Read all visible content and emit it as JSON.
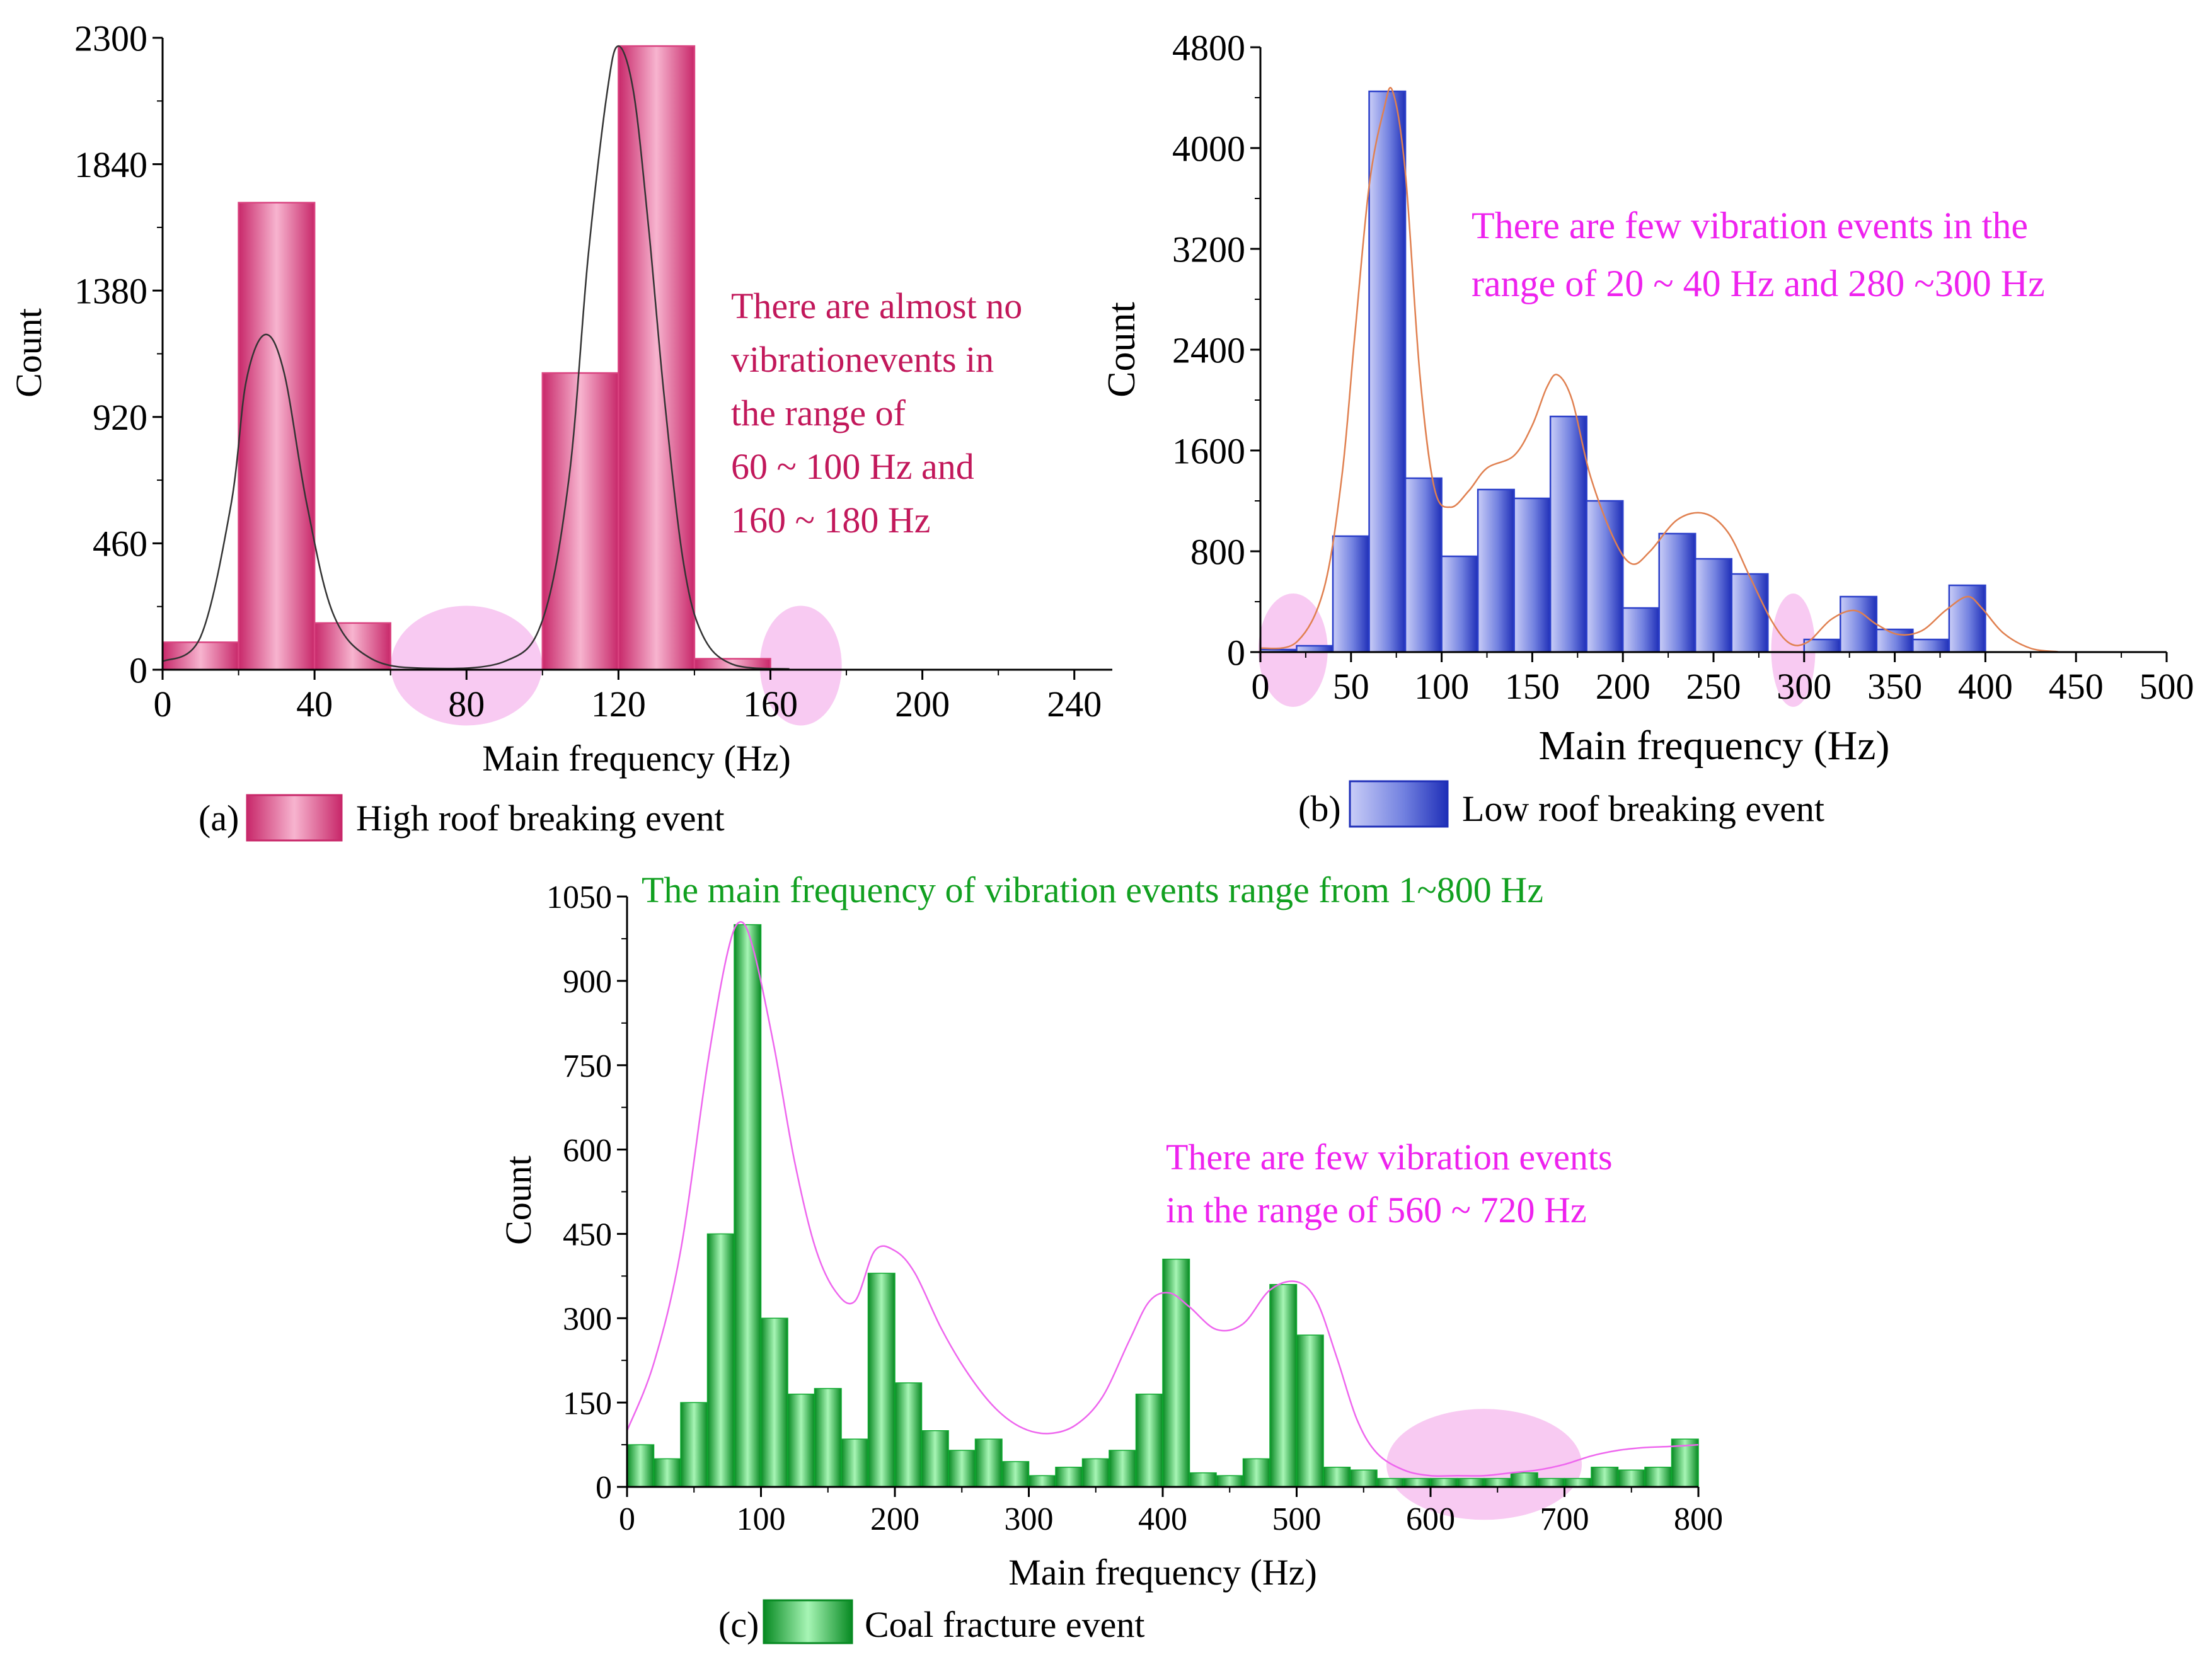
{
  "chart_data": [
    {
      "id": "a",
      "type": "bar",
      "panel_label": "(a)",
      "legend_label": "High roof breaking event",
      "xlabel": "Main frequency (Hz)",
      "ylabel": "Count",
      "xlim": [
        0,
        250
      ],
      "ylim": [
        0,
        2300
      ],
      "xticks": [
        0,
        40,
        80,
        120,
        160,
        200,
        240
      ],
      "yticks": [
        0,
        460,
        920,
        1380,
        1840,
        2300
      ],
      "bin_edges": [
        0,
        20,
        40,
        60,
        80,
        100,
        120,
        140,
        160,
        180
      ],
      "values": [
        100,
        1700,
        170,
        0,
        0,
        1080,
        2270,
        40,
        0
      ],
      "fit_curve": [
        [
          0,
          30
        ],
        [
          10,
          120
        ],
        [
          18,
          600
        ],
        [
          22,
          1050
        ],
        [
          27,
          1220
        ],
        [
          32,
          1080
        ],
        [
          38,
          600
        ],
        [
          45,
          200
        ],
        [
          55,
          40
        ],
        [
          70,
          5
        ],
        [
          90,
          30
        ],
        [
          100,
          180
        ],
        [
          107,
          700
        ],
        [
          112,
          1500
        ],
        [
          117,
          2100
        ],
        [
          120,
          2270
        ],
        [
          124,
          2100
        ],
        [
          128,
          1600
        ],
        [
          132,
          1000
        ],
        [
          137,
          400
        ],
        [
          142,
          130
        ],
        [
          150,
          20
        ],
        [
          165,
          3
        ]
      ],
      "highlights": [
        [
          80,
          15
        ],
        [
          168,
          15
        ]
      ],
      "annotation": [
        "There are almost no",
        "vibrationevents in",
        "the range of",
        "60 ~ 100 Hz and",
        "160 ~ 180 Hz"
      ],
      "bar_color": "#d9427f",
      "curve_color": "#333333",
      "annotation_color": "#c2185b"
    },
    {
      "id": "b",
      "type": "bar",
      "panel_label": "(b)",
      "legend_label": "Low roof breaking event",
      "xlabel": "Main frequency (Hz)",
      "ylabel": "Count",
      "xlim": [
        0,
        500
      ],
      "ylim": [
        0,
        4800
      ],
      "xticks": [
        0,
        50,
        100,
        150,
        200,
        250,
        300,
        350,
        400,
        450,
        500
      ],
      "yticks": [
        0,
        800,
        1600,
        2400,
        3200,
        4000,
        4800
      ],
      "bin_edges": [
        0,
        20,
        40,
        60,
        80,
        100,
        120,
        140,
        160,
        180,
        200,
        220,
        240,
        260,
        280,
        300,
        320,
        340,
        360,
        380,
        400
      ],
      "values": [
        20,
        50,
        920,
        4450,
        1380,
        760,
        1290,
        1220,
        1870,
        1200,
        350,
        940,
        740,
        620,
        0,
        100,
        440,
        180,
        100,
        530
      ],
      "fit_curve": [
        [
          0,
          30
        ],
        [
          20,
          80
        ],
        [
          35,
          500
        ],
        [
          45,
          1400
        ],
        [
          52,
          2500
        ],
        [
          60,
          3700
        ],
        [
          68,
          4300
        ],
        [
          73,
          4450
        ],
        [
          80,
          3800
        ],
        [
          88,
          2200
        ],
        [
          96,
          1300
        ],
        [
          105,
          1150
        ],
        [
          115,
          1280
        ],
        [
          125,
          1460
        ],
        [
          140,
          1560
        ],
        [
          150,
          1800
        ],
        [
          158,
          2100
        ],
        [
          164,
          2200
        ],
        [
          172,
          2000
        ],
        [
          182,
          1400
        ],
        [
          195,
          900
        ],
        [
          205,
          700
        ],
        [
          215,
          800
        ],
        [
          230,
          1050
        ],
        [
          245,
          1100
        ],
        [
          258,
          950
        ],
        [
          270,
          600
        ],
        [
          282,
          250
        ],
        [
          292,
          70
        ],
        [
          302,
          80
        ],
        [
          315,
          260
        ],
        [
          328,
          330
        ],
        [
          340,
          220
        ],
        [
          352,
          140
        ],
        [
          365,
          170
        ],
        [
          378,
          330
        ],
        [
          390,
          440
        ],
        [
          398,
          350
        ],
        [
          410,
          150
        ],
        [
          425,
          30
        ],
        [
          440,
          3
        ]
      ],
      "highlights": [
        [
          18,
          15
        ],
        [
          294,
          15
        ]
      ],
      "annotation": [
        "There are few vibration events in the",
        "range of 20 ~ 40 Hz and 280 ~300 Hz"
      ],
      "bar_color": "#2b3fc9",
      "curve_color": "#e08050",
      "annotation_color": "#ee22ee"
    },
    {
      "id": "c",
      "type": "bar",
      "panel_label": "(c)",
      "legend_label": "Coal fracture event",
      "xlabel": "Main frequency (Hz)",
      "ylabel": "Count",
      "xlim": [
        0,
        800
      ],
      "ylim": [
        0,
        1050
      ],
      "xticks": [
        0,
        100,
        200,
        300,
        400,
        500,
        600,
        700,
        800
      ],
      "yticks": [
        0,
        150,
        300,
        450,
        600,
        750,
        900,
        1050
      ],
      "bin_edges": [
        0,
        20,
        40,
        60,
        80,
        100,
        120,
        140,
        160,
        180,
        200,
        220,
        240,
        260,
        280,
        300,
        320,
        340,
        360,
        380,
        400,
        420,
        440,
        460,
        480,
        500,
        520,
        540,
        560,
        580,
        600,
        620,
        640,
        660,
        680,
        700,
        720,
        740,
        760,
        780,
        800
      ],
      "values": [
        75,
        50,
        150,
        450,
        1000,
        300,
        165,
        175,
        85,
        380,
        185,
        100,
        65,
        85,
        45,
        20,
        35,
        50,
        65,
        165,
        405,
        25,
        20,
        50,
        360,
        270,
        35,
        30,
        15,
        15,
        15,
        15,
        15,
        25,
        15,
        15,
        35,
        30,
        35,
        85
      ],
      "fit_curve": [
        [
          0,
          100
        ],
        [
          20,
          220
        ],
        [
          40,
          420
        ],
        [
          60,
          750
        ],
        [
          75,
          950
        ],
        [
          85,
          1005
        ],
        [
          95,
          950
        ],
        [
          110,
          780
        ],
        [
          125,
          580
        ],
        [
          140,
          430
        ],
        [
          155,
          350
        ],
        [
          170,
          330
        ],
        [
          185,
          420
        ],
        [
          200,
          420
        ],
        [
          215,
          380
        ],
        [
          235,
          280
        ],
        [
          255,
          200
        ],
        [
          275,
          140
        ],
        [
          295,
          105
        ],
        [
          315,
          95
        ],
        [
          335,
          110
        ],
        [
          355,
          160
        ],
        [
          375,
          260
        ],
        [
          390,
          330
        ],
        [
          405,
          345
        ],
        [
          420,
          320
        ],
        [
          440,
          280
        ],
        [
          460,
          290
        ],
        [
          480,
          350
        ],
        [
          500,
          365
        ],
        [
          515,
          330
        ],
        [
          530,
          230
        ],
        [
          545,
          120
        ],
        [
          560,
          60
        ],
        [
          580,
          30
        ],
        [
          600,
          20
        ],
        [
          620,
          20
        ],
        [
          640,
          20
        ],
        [
          660,
          25
        ],
        [
          680,
          30
        ],
        [
          700,
          40
        ],
        [
          720,
          55
        ],
        [
          740,
          65
        ],
        [
          760,
          70
        ],
        [
          780,
          72
        ],
        [
          800,
          75
        ]
      ],
      "highlights": [
        [
          640,
          40
        ]
      ],
      "title": "The main frequency of vibration events range from 1~800 Hz",
      "annotation": [
        "There are few vibration events",
        "in the range of 560 ~ 720 Hz"
      ],
      "bar_color": "#0faa30",
      "curve_color": "#ee66ee",
      "annotation_color": "#ee22ee",
      "title_color": "#11a020"
    }
  ]
}
